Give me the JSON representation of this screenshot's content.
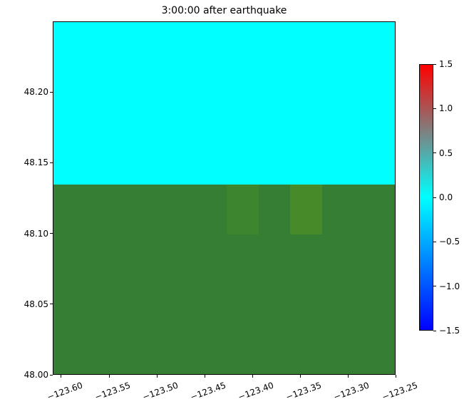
{
  "figure": {
    "background": "#ffffff"
  },
  "title": "3:00:00 after earthquake",
  "chart_data": {
    "type": "heatmap",
    "title": "3:00:00 after earthquake",
    "xlabel": "",
    "ylabel": "",
    "grid": false,
    "xlim": [
      -123.6089,
      -123.2504
    ],
    "ylim": [
      48.0,
      48.25
    ],
    "xtick_rotation_deg": 20,
    "xticks": [
      {
        "value": -123.6,
        "label": "−123.60"
      },
      {
        "value": -123.55,
        "label": "−123.55"
      },
      {
        "value": -123.5,
        "label": "−123.50"
      },
      {
        "value": -123.45,
        "label": "−123.45"
      },
      {
        "value": -123.4,
        "label": "−123.40"
      },
      {
        "value": -123.35,
        "label": "−123.35"
      },
      {
        "value": -123.3,
        "label": "−123.30"
      },
      {
        "value": -123.25,
        "label": "−123.25"
      }
    ],
    "yticks": [
      {
        "value": 48.2,
        "label": "48.20"
      },
      {
        "value": 48.15,
        "label": "48.15"
      },
      {
        "value": 48.1,
        "label": "48.10"
      },
      {
        "value": 48.05,
        "label": "48.05"
      },
      {
        "value": 48.0,
        "label": "48.00"
      }
    ],
    "regions": [
      {
        "name": "sea-surface",
        "x0": -123.6089,
        "x1": -123.2504,
        "y0": 48.135,
        "y1": 48.25,
        "value": 0.0,
        "color": "#00ffff"
      },
      {
        "name": "land",
        "x0": -123.6089,
        "x1": -123.2504,
        "y0": 48.0,
        "y1": 48.135,
        "color": "#367e33"
      },
      {
        "name": "land-cell-1",
        "x0": -123.4278,
        "x1": -123.3944,
        "y0": 48.1,
        "y1": 48.135,
        "color": "#3e8530"
      },
      {
        "name": "land-cell-2",
        "x0": -123.3611,
        "x1": -123.3278,
        "y0": 48.1,
        "y1": 48.135,
        "color": "#468a29"
      }
    ],
    "colorbar": {
      "vmin": -1.5,
      "vmax": 1.5,
      "ticks": [
        {
          "value": 1.5,
          "label": "1.5"
        },
        {
          "value": 1.0,
          "label": "1.0"
        },
        {
          "value": 0.5,
          "label": "0.5"
        },
        {
          "value": 0.0,
          "label": "0.0"
        },
        {
          "value": -0.5,
          "label": "−0.5"
        },
        {
          "value": -1.0,
          "label": "−1.0"
        },
        {
          "value": -1.5,
          "label": "−1.5"
        }
      ],
      "gradient": [
        {
          "value": 1.5,
          "color": "#ff0000"
        },
        {
          "value": 0.0,
          "color": "#00ffff"
        },
        {
          "value": -1.5,
          "color": "#0000ff"
        }
      ]
    }
  }
}
